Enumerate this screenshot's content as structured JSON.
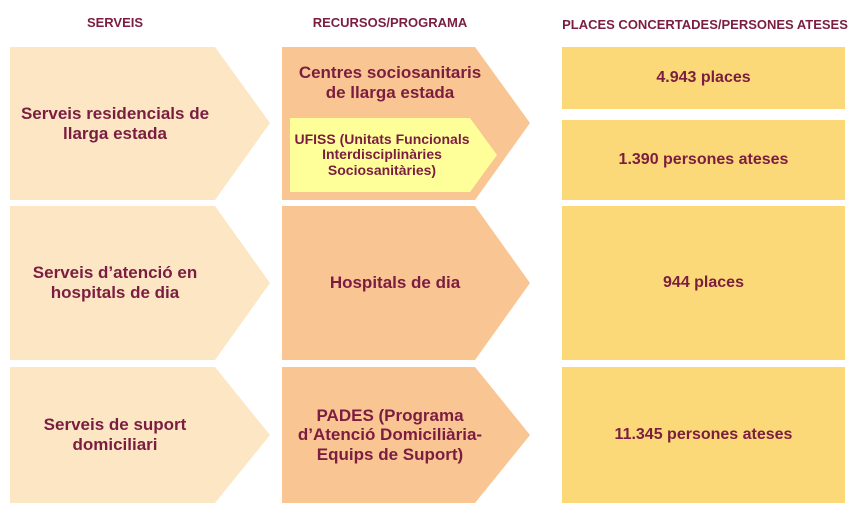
{
  "headers": [
    "SERVEIS",
    "RECURSOS/PROGRAMA",
    "PLACES CONCERTADES/PERSONES ATESES"
  ],
  "rows": [
    {
      "service": "Serveis residencials de llarga estada",
      "resources": [
        "Centres sociosanitaris de llarga estada",
        "UFISS (Unitats Funcionals Interdisciplinàries Sociosanitàries)"
      ],
      "results": [
        "4.943 places",
        "1.390 persones ateses"
      ]
    },
    {
      "service": "Serveis d’atenció en hospitals de dia",
      "resources": [
        "Hospitals de dia"
      ],
      "results": [
        "944 places"
      ]
    },
    {
      "service": "Serveis de suport domiciliari",
      "resources": [
        "PADES (Programa d’Atenció Domiciliària-Equips de Suport)"
      ],
      "results": [
        "11.345 persones ateses"
      ]
    }
  ]
}
